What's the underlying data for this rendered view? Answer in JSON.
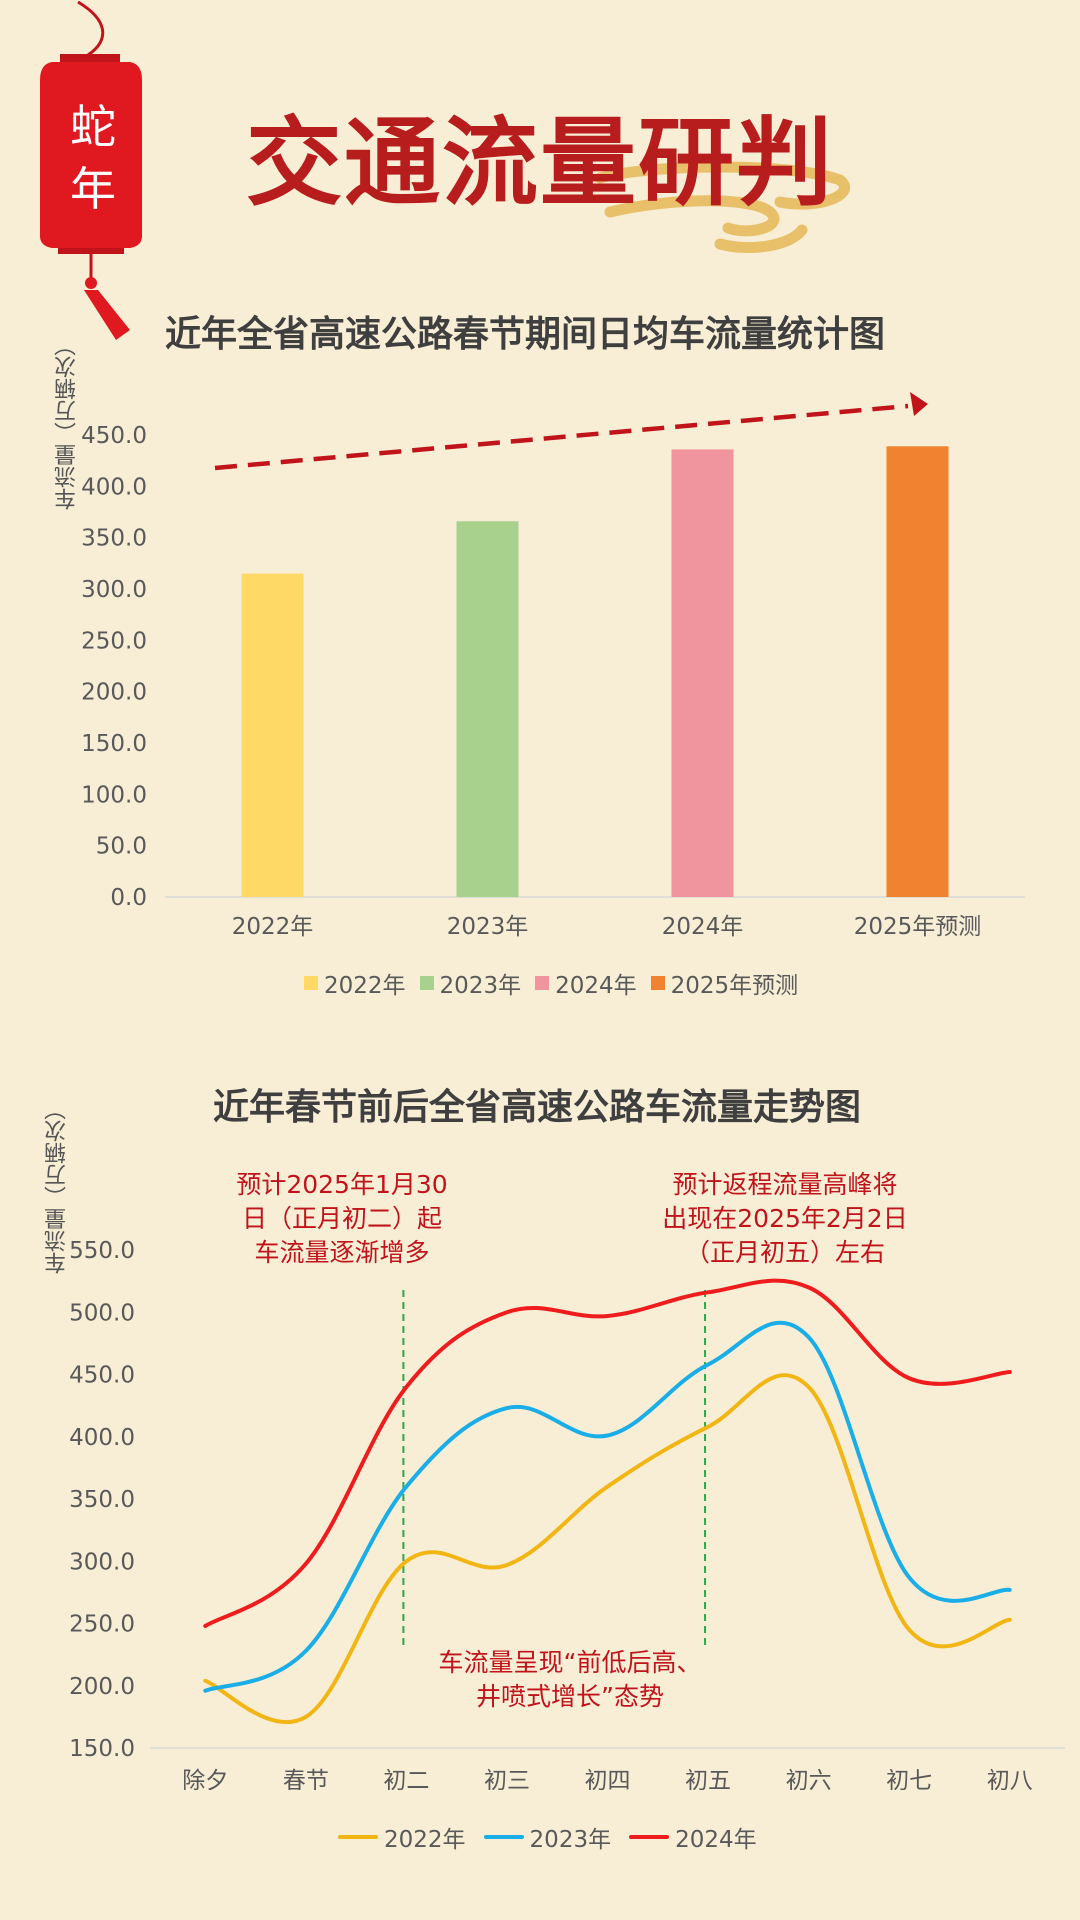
{
  "title": "交通流量研判",
  "lantern": {
    "line1": "蛇",
    "line2": "年"
  },
  "colors": {
    "title": "#b81d1d",
    "lantern": "#e0181f",
    "cloud": "#e8c06a",
    "background": "#f8eed6",
    "annotation": "#c0141a",
    "trend_arrow": "#c0141a",
    "guide_line": "#2aa84a"
  },
  "chart_data": [
    {
      "type": "bar",
      "title": "近年全省高速公路春节期间日均车流量统计图",
      "ylabel": "车流量（万辆次）",
      "categories": [
        "2022年",
        "2023年",
        "2024年",
        "2025年预测"
      ],
      "values": [
        315,
        366,
        436,
        439
      ],
      "colors": [
        "#ffd966",
        "#a9d18e",
        "#f0949e",
        "#f08230"
      ],
      "ylim": [
        0,
        450
      ],
      "yticks": [
        "0.0",
        "50.0",
        "100.0",
        "150.0",
        "200.0",
        "250.0",
        "300.0",
        "350.0",
        "400.0",
        "450.0"
      ],
      "legend": [
        "2022年",
        "2023年",
        "2024年",
        "2025年预测"
      ],
      "legend_position": "bottom",
      "trend_arrow": "increasing"
    },
    {
      "type": "line",
      "title": "近年春节前后全省高速公路车流量走势图",
      "ylabel": "车流量（万辆次）",
      "categories": [
        "除夕",
        "春节",
        "初二",
        "初三",
        "初四",
        "初五",
        "初六",
        "初七",
        "初八"
      ],
      "series": [
        {
          "name": "2022年",
          "color": "#f2b614",
          "values": [
            204,
            175,
            300,
            297,
            360,
            408,
            440,
            245,
            253
          ]
        },
        {
          "name": "2023年",
          "color": "#1aaee8",
          "values": [
            196,
            228,
            360,
            423,
            401,
            458,
            480,
            287,
            277
          ]
        },
        {
          "name": "2024年",
          "color": "#ee1c1c",
          "values": [
            248,
            298,
            440,
            500,
            497,
            516,
            520,
            447,
            452
          ]
        }
      ],
      "ylim": [
        150,
        550
      ],
      "yticks": [
        "150.0",
        "200.0",
        "250.0",
        "300.0",
        "350.0",
        "400.0",
        "450.0",
        "500.0",
        "550.0"
      ],
      "legend_position": "bottom",
      "annotations": [
        "预计2025年1月30\n日（正月初二）起\n车流量逐渐增多",
        "预计返程流量高峰将\n出现在2025年2月2日\n（正月初五）左右",
        "车流量呈现“前低后高、\n井喷式增长”态势"
      ],
      "guide_lines_at": [
        "初二",
        "初五"
      ]
    }
  ]
}
